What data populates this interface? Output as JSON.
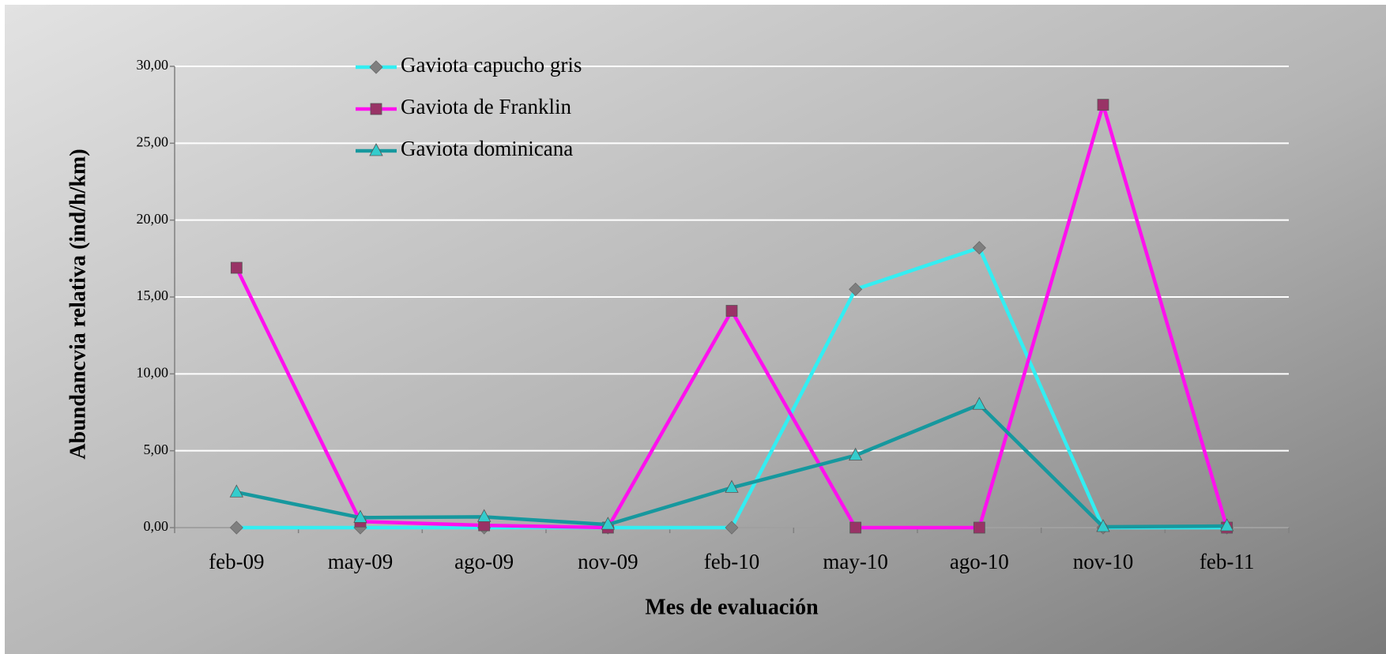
{
  "chart_data": {
    "type": "line",
    "xlabel": "Mes de evaluación",
    "ylabel": "Abundancvia relativa (ind/h/km)",
    "categories": [
      "feb-09",
      "may-09",
      "ago-09",
      "nov-09",
      "feb-10",
      "may-10",
      "ago-10",
      "nov-10",
      "feb-11"
    ],
    "series": [
      {
        "name": "Gaviota capucho gris",
        "color": "#33eef2",
        "marker": "diamond",
        "marker_color": "#7f7f7f",
        "values": [
          0,
          0,
          0,
          0,
          0,
          15.5,
          18.2,
          0,
          0
        ]
      },
      {
        "name": "Gaviota de Franklin",
        "color": "#ff10ee",
        "marker": "square",
        "marker_color": "#993366",
        "values": [
          16.9,
          0.4,
          0.15,
          0,
          14.1,
          0,
          0,
          27.5,
          0
        ]
      },
      {
        "name": "Gaviota dominicana",
        "color": "#16989e",
        "marker": "triangle",
        "marker_color": "#33cccc",
        "values": [
          2.3,
          0.65,
          0.7,
          0.2,
          2.6,
          4.7,
          8.0,
          0.05,
          0.1
        ]
      }
    ],
    "ylim": [
      0,
      30
    ],
    "yticks": [
      {
        "value": 0,
        "label": "0,00"
      },
      {
        "value": 5,
        "label": "5,00"
      },
      {
        "value": 10,
        "label": "10,00"
      },
      {
        "value": 15,
        "label": "15,00"
      },
      {
        "value": 20,
        "label": "20,00"
      },
      {
        "value": 25,
        "label": "25,00"
      },
      {
        "value": 30,
        "label": "30,00"
      }
    ],
    "grid": true
  }
}
